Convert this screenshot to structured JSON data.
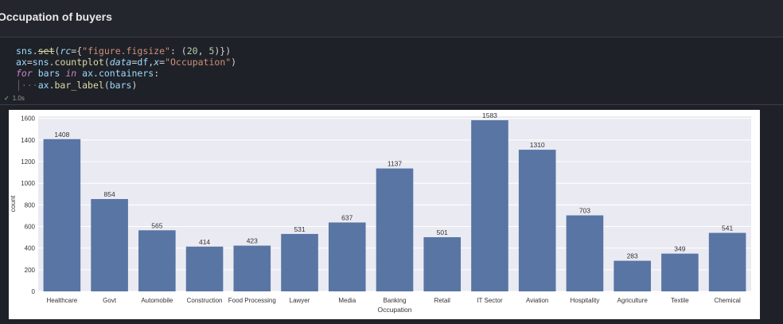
{
  "markdown": {
    "title": "Occupation of buyers"
  },
  "code": {
    "line1": {
      "mod": "sns",
      "fn": "set",
      "param": "rc",
      "key": "\"figure.figsize\"",
      "w": "20",
      "h": "5"
    },
    "line2": {
      "var": "ax",
      "mod": "sns",
      "fn": "countplot",
      "p1": "data",
      "v1": "df",
      "p2": "x",
      "v2": "\"Occupation\""
    },
    "line3": {
      "kw_for": "for",
      "var": "bars",
      "kw_in": "in",
      "obj": "ax",
      "attr": "containers"
    },
    "line4": {
      "obj": "ax",
      "fn": "bar_label",
      "arg": "bars"
    }
  },
  "execution": {
    "status": "✓",
    "time": "1.0s"
  },
  "chart_data": {
    "type": "bar",
    "categories": [
      "Healthcare",
      "Govt",
      "Automobile",
      "Construction",
      "Food Processing",
      "Lawyer",
      "Media",
      "Banking",
      "Retail",
      "IT Sector",
      "Aviation",
      "Hospitality",
      "Agriculture",
      "Textile",
      "Chemical"
    ],
    "values": [
      1408,
      854,
      565,
      414,
      423,
      531,
      637,
      1137,
      501,
      1583,
      1310,
      703,
      283,
      349,
      541
    ],
    "title": "",
    "xlabel": "Occupation",
    "ylabel": "count",
    "ylim": [
      0,
      1620
    ],
    "yticks": [
      0,
      200,
      400,
      600,
      800,
      1000,
      1200,
      1400,
      1600
    ],
    "grid": true,
    "colors": {
      "bar": "#5875a4",
      "background": "#eaeaf2",
      "grid": "#ffffff"
    }
  }
}
